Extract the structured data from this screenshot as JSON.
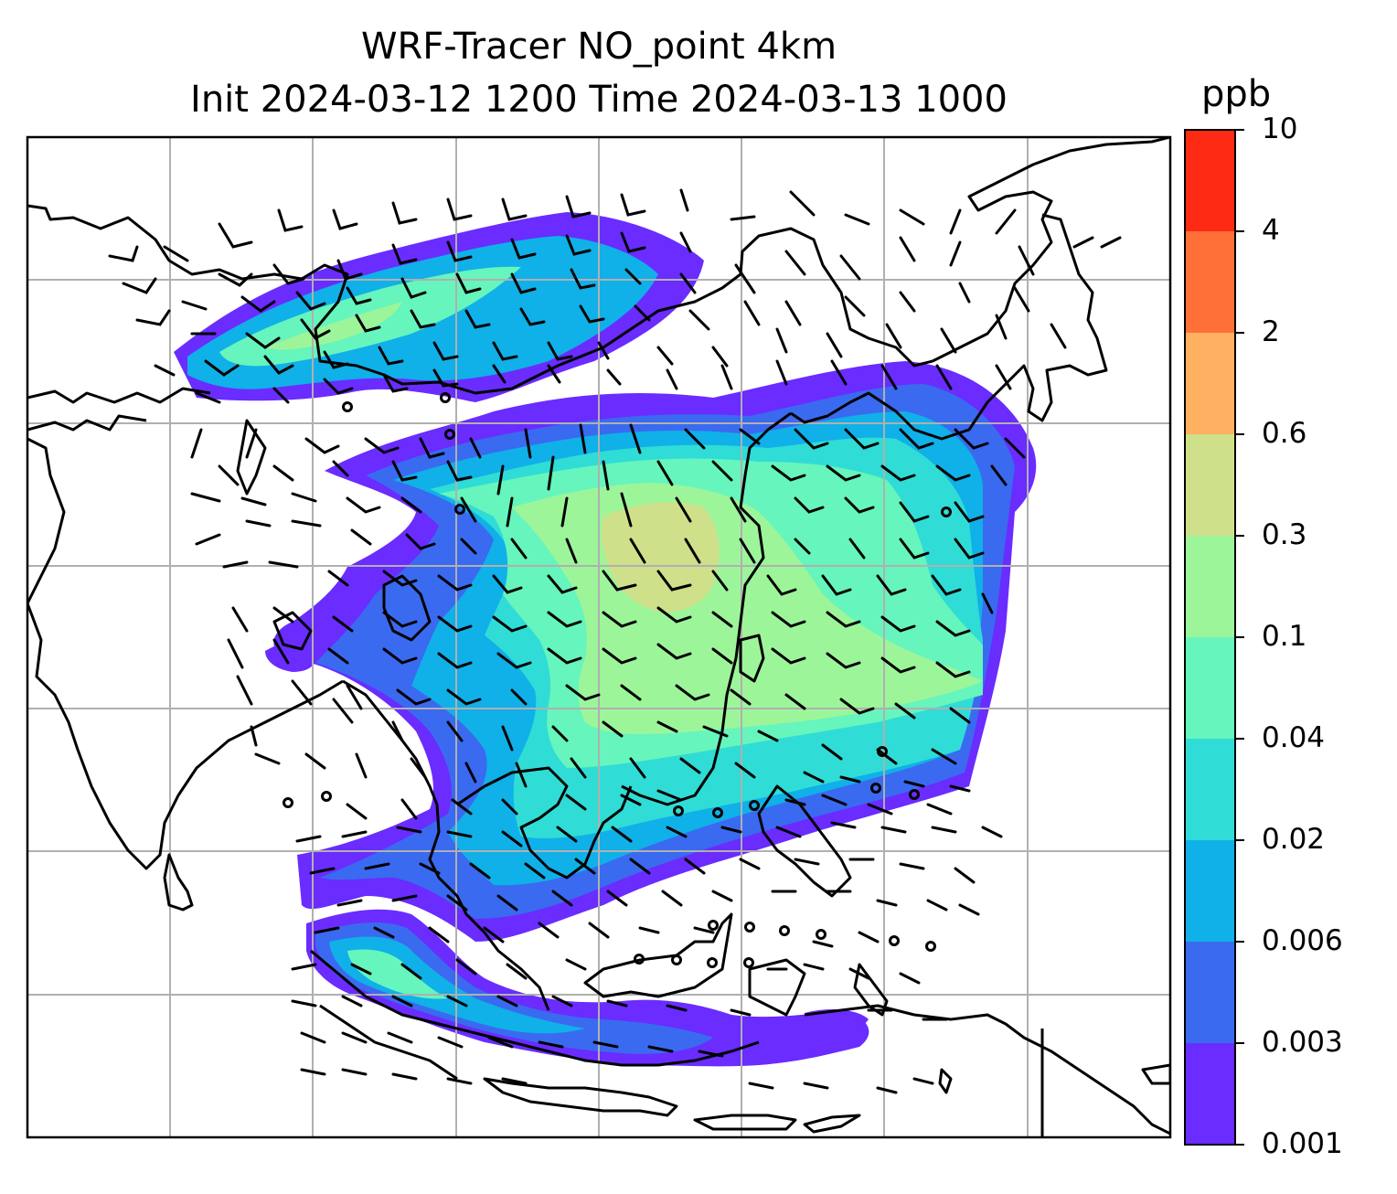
{
  "title_line1": "WRF-Tracer NO_point 4km",
  "title_line2": "Init 2024-03-12 1200 Time 2024-03-13 1000",
  "colorbar": {
    "unit": "ppb",
    "ticks": [
      "0.001",
      "0.003",
      "0.006",
      "0.02",
      "0.04",
      "0.1",
      "0.3",
      "0.6",
      "2",
      "4",
      "10"
    ],
    "colors": [
      "#6a2cff",
      "#3a6af0",
      "#10b0e8",
      "#30dcd6",
      "#66f5bc",
      "#9df59a",
      "#cfe08a",
      "#ffb060",
      "#ff7038",
      "#ff2a14"
    ]
  },
  "map": {
    "gridlines": true,
    "coastlines": true,
    "wind_barbs": true
  }
}
